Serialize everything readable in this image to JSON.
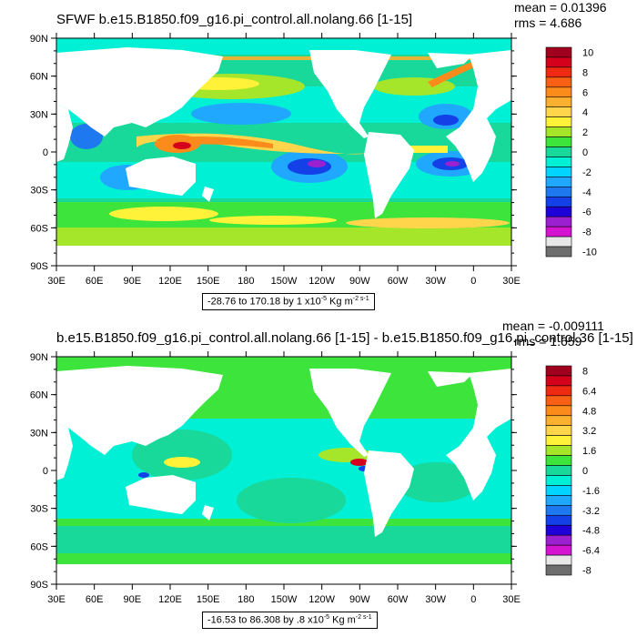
{
  "maps": [
    {
      "title": "SFWF b.e15.B1850.f09_g16.pi_control.all.nolang.66 [1-15]",
      "mean_text": "mean = 0.01396",
      "rms_text": "rms = 4.686",
      "range_label": {
        "prefix": "-28.76 to 170.18 by 1 x10",
        "exp": "-5",
        "unit": " Kg m",
        "unit_exp": "-2 s-1"
      },
      "lat_labels": [
        "90N",
        "60N",
        "30N",
        "0",
        "30S",
        "60S",
        "90S"
      ],
      "lon_labels": [
        "30E",
        "60E",
        "90E",
        "120E",
        "150E",
        "180",
        "150W",
        "120W",
        "90W",
        "60W",
        "30W",
        "0",
        "30E"
      ],
      "colorbar": {
        "labels": [
          "10",
          "8",
          "6",
          "4",
          "2",
          "0",
          "-2",
          "-4",
          "-6",
          "-8",
          "-10"
        ],
        "colors": [
          "#a0001e",
          "#d4001c",
          "#f02a12",
          "#f86015",
          "#fb8c1b",
          "#fcb02f",
          "#ffd54c",
          "#fff238",
          "#a6e62a",
          "#3ce43c",
          "#18d89a",
          "#00f0d6",
          "#00d4ff",
          "#20a8ff",
          "#1e78f0",
          "#1440e8",
          "#1e00d8",
          "#9b20d0",
          "#d414d0",
          "#e8e8e8",
          "#6e6e6e"
        ]
      }
    },
    {
      "title": "b.e15.B1850.f09_g16.pi_control.all.nolang.66 [1-15] - b.e15.B1850.f09_g16.pi_control.36 [1-15]",
      "mean_text": "mean = -0.009111",
      "rms_text": "rms = 1.659",
      "range_label": {
        "prefix": "-16.53 to 86.308 by .8 x10",
        "exp": "-5",
        "unit": " Kg m",
        "unit_exp": "-2 s-1"
      },
      "lat_labels": [
        "90N",
        "60N",
        "30N",
        "0",
        "30S",
        "60S",
        "90S"
      ],
      "lon_labels": [
        "30E",
        "60E",
        "90E",
        "120E",
        "150E",
        "180",
        "150W",
        "120W",
        "90W",
        "60W",
        "30W",
        "0",
        "30E"
      ],
      "colorbar": {
        "labels": [
          "8",
          "6.4",
          "4.8",
          "3.2",
          "1.6",
          "0",
          "-1.6",
          "-3.2",
          "-4.8",
          "-6.4",
          "-8"
        ],
        "colors": [
          "#a0001e",
          "#d4001c",
          "#f02a12",
          "#f86015",
          "#fb8c1b",
          "#fcb02f",
          "#ffd54c",
          "#fff238",
          "#a6e62a",
          "#3ce43c",
          "#18d89a",
          "#00f0d6",
          "#00d4ff",
          "#20a8ff",
          "#1e78f0",
          "#1440e8",
          "#1e00d8",
          "#9b20d0",
          "#d414d0",
          "#e8e8e8",
          "#6e6e6e"
        ]
      }
    }
  ]
}
